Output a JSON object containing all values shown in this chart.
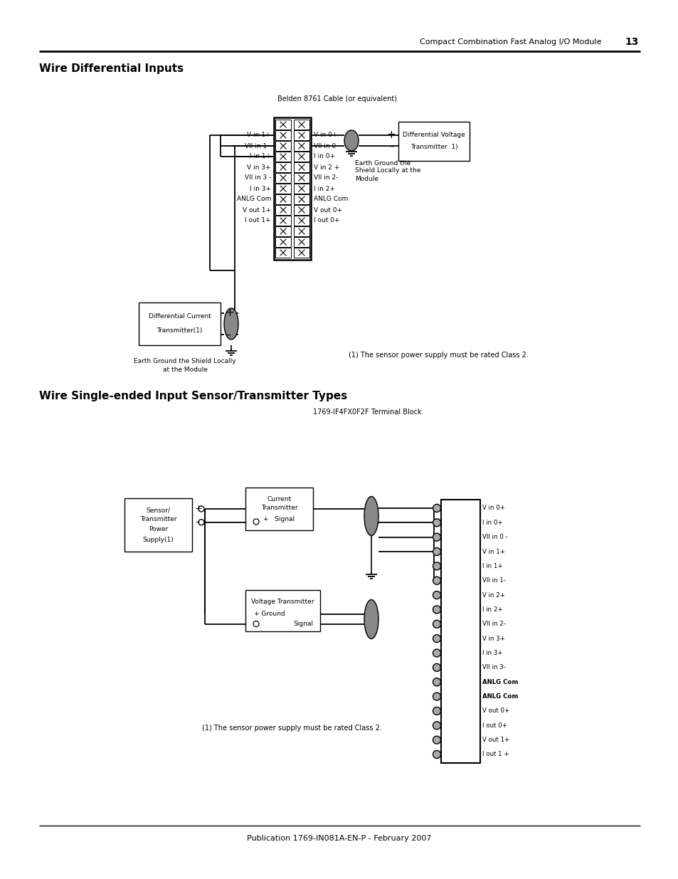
{
  "page_title": "Compact Combination Fast Analog I/O Module",
  "page_number": "13",
  "footer_text": "Publication 1769-IN081A-EN-P - February 2007",
  "section1_title": "Wire Differential Inputs",
  "section2_title": "Wire Single-ended Input Sensor/Transmitter Types",
  "bg_color": "#ffffff",
  "sec1_belden_label": "Belden 8761 Cable (or equivalent)",
  "sec1_right_labels": [
    "V in 0+",
    "VII in 0-",
    "I in 0+",
    "V in 2 +",
    "VII in 2-",
    "I in 2+",
    "ANLG Com",
    "V out 0+",
    "I out 0+"
  ],
  "sec1_left_labels": [
    "V in 1+",
    "VII in 1 -",
    "I in 1+",
    "V in 3+",
    "VII in 3 -",
    "I in 3+",
    "ANLG Com",
    "V out 1+",
    "I out 1+"
  ],
  "sec1_volt_tx": [
    "Differential Voltage",
    "Transmitter  1)"
  ],
  "sec1_curr_tx": [
    "Differential Current",
    "Transmitter(1)"
  ],
  "sec1_gnd1": [
    "Earth Ground the",
    "Shield Locally at the",
    "Module"
  ],
  "sec1_gnd2": [
    "Earth Ground the Shield Locally",
    "at the Module"
  ],
  "sec1_note": "(1) The sensor power supply must be rated Class 2.",
  "sec2_tb_label": "1769-IF4FX0F2F Terminal Block",
  "sec2_supply": [
    "Sensor/",
    "Transmitter",
    "Power",
    "Supply(1)"
  ],
  "sec2_curr_tx": [
    "Current",
    "Transmitter",
    "+   Signal"
  ],
  "sec2_volt_tx": [
    "Voltage Transmitter",
    "+ Ground",
    "Signal"
  ],
  "sec2_tb_labels": [
    "V in 0+",
    "I in 0+",
    "VII in 0 -",
    "V in 1+",
    "I in 1+",
    "VII in 1-",
    "V in 2+",
    "I in 2+",
    "VII in 2-",
    "V in 3+",
    "I in 3+",
    "VII in 3-",
    "ANLG Com",
    "ANLG Com",
    "V out 0+",
    "I out 0+",
    "V out 1+",
    "I out 1 +"
  ],
  "sec2_note": "(1) The sensor power supply must be rated Class 2."
}
